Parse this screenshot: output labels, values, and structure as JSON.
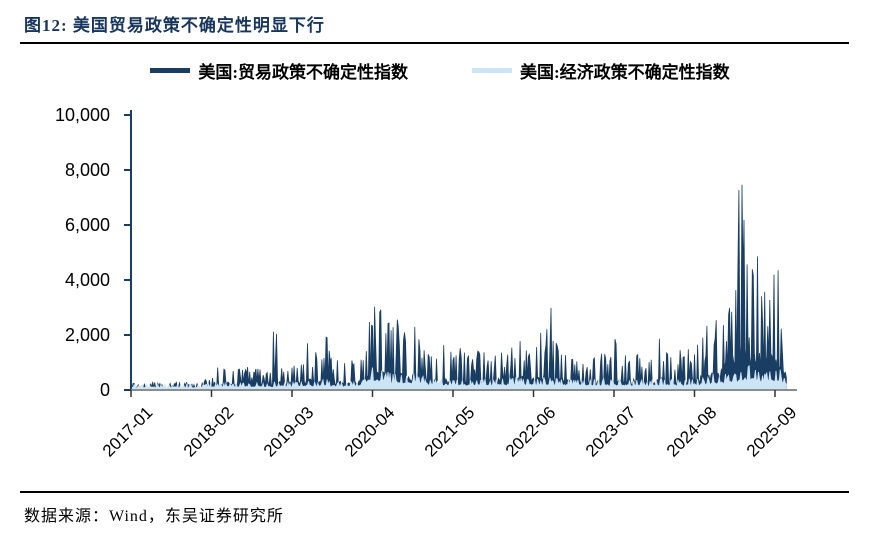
{
  "header": {
    "title": "图12:  美国贸易政策不确定性明显下行"
  },
  "footer": {
    "source": "数据来源：Wind，东吴证券研究所"
  },
  "colors": {
    "title_navy": "#17365D",
    "tpu_navy": "#1A3E63",
    "epu_light_blue": "#CDE4F6",
    "x_axis_grey": "#8C8C8C",
    "tick_dark": "#333333"
  },
  "chart_data": {
    "type": "area",
    "title": "图12:  美国贸易政策不确定性明显下行",
    "xlabel": "",
    "ylabel": "",
    "ylim": [
      0,
      10000
    ],
    "grid": false,
    "legend_position": "top",
    "x_start": "2017-01",
    "x_end": "2025-10",
    "freq": "monthly_envelope (daily index summarized as [typical, monthly-max])",
    "y_ticks": [
      0,
      2000,
      4000,
      6000,
      8000,
      10000
    ],
    "y_tick_labels": [
      "0",
      "2,000",
      "4,000",
      "6,000",
      "8,000",
      "10,000"
    ],
    "x_tick_labels": [
      "2017-01",
      "2018-02",
      "2019-03",
      "2020-04",
      "2021-05",
      "2022-06",
      "2023-07",
      "2024-08",
      "2025-09"
    ],
    "series": [
      {
        "name": "美国:贸易政策不确定性指数",
        "color": "#1A3E63",
        "monthly_base_peak": [
          [
            80,
            250
          ],
          [
            80,
            200
          ],
          [
            90,
            250
          ],
          [
            100,
            300
          ],
          [
            90,
            250
          ],
          [
            80,
            200
          ],
          [
            90,
            250
          ],
          [
            100,
            300
          ],
          [
            90,
            250
          ],
          [
            90,
            300
          ],
          [
            90,
            250
          ],
          [
            100,
            300
          ],
          [
            120,
            400
          ],
          [
            150,
            450
          ],
          [
            200,
            900
          ],
          [
            250,
            800
          ],
          [
            200,
            700
          ],
          [
            250,
            800
          ],
          [
            300,
            900
          ],
          [
            250,
            700
          ],
          [
            300,
            800
          ],
          [
            250,
            600
          ],
          [
            250,
            700
          ],
          [
            300,
            2300
          ],
          [
            300,
            800
          ],
          [
            280,
            700
          ],
          [
            300,
            900
          ],
          [
            300,
            1000
          ],
          [
            350,
            1700
          ],
          [
            350,
            1400
          ],
          [
            300,
            1200
          ],
          [
            400,
            2100
          ],
          [
            350,
            1500
          ],
          [
            300,
            1200
          ],
          [
            280,
            1000
          ],
          [
            300,
            1100
          ],
          [
            300,
            1000
          ],
          [
            350,
            1200
          ],
          [
            500,
            2500
          ],
          [
            800,
            3300
          ],
          [
            700,
            3000
          ],
          [
            600,
            2600
          ],
          [
            500,
            2400
          ],
          [
            600,
            2600
          ],
          [
            500,
            2200
          ],
          [
            500,
            2400
          ],
          [
            450,
            2000
          ],
          [
            400,
            1600
          ],
          [
            400,
            1400
          ],
          [
            350,
            1200
          ],
          [
            400,
            1800
          ],
          [
            350,
            1400
          ],
          [
            350,
            1300
          ],
          [
            400,
            1600
          ],
          [
            350,
            1300
          ],
          [
            350,
            1200
          ],
          [
            400,
            1500
          ],
          [
            400,
            1400
          ],
          [
            350,
            1300
          ],
          [
            400,
            1500
          ],
          [
            400,
            1300
          ],
          [
            450,
            1600
          ],
          [
            500,
            1800
          ],
          [
            450,
            1500
          ],
          [
            400,
            1400
          ],
          [
            450,
            1700
          ],
          [
            500,
            2200
          ],
          [
            500,
            3000
          ],
          [
            450,
            1800
          ],
          [
            400,
            1500
          ],
          [
            400,
            1400
          ],
          [
            350,
            1200
          ],
          [
            350,
            1100
          ],
          [
            300,
            1000
          ],
          [
            350,
            1300
          ],
          [
            300,
            1100
          ],
          [
            350,
            1400
          ],
          [
            300,
            1200
          ],
          [
            400,
            1900
          ],
          [
            350,
            1300
          ],
          [
            300,
            1100
          ],
          [
            350,
            1300
          ],
          [
            300,
            1200
          ],
          [
            300,
            1100
          ],
          [
            300,
            1200
          ],
          [
            400,
            2000
          ],
          [
            350,
            1400
          ],
          [
            300,
            1300
          ],
          [
            350,
            1500
          ],
          [
            300,
            1300
          ],
          [
            400,
            1600
          ],
          [
            450,
            1800
          ],
          [
            500,
            2000
          ],
          [
            600,
            2400
          ],
          [
            700,
            2800
          ],
          [
            700,
            2600
          ],
          [
            1000,
            3200
          ],
          [
            1300,
            3800
          ],
          [
            1800,
            8000
          ],
          [
            1800,
            6800
          ],
          [
            1400,
            4600
          ],
          [
            1300,
            5100
          ],
          [
            1200,
            3600
          ],
          [
            1200,
            4400
          ],
          [
            1000,
            4500
          ],
          [
            800,
            2300
          ]
        ]
      },
      {
        "name": "美国:经济政策不确定性指数",
        "color": "#CDE4F6",
        "monthly_base_peak": [
          [
            100,
            200
          ],
          [
            100,
            190
          ],
          [
            110,
            210
          ],
          [
            110,
            220
          ],
          [
            100,
            200
          ],
          [
            100,
            190
          ],
          [
            100,
            200
          ],
          [
            110,
            220
          ],
          [
            100,
            200
          ],
          [
            110,
            210
          ],
          [
            100,
            200
          ],
          [
            110,
            220
          ],
          [
            120,
            240
          ],
          [
            120,
            230
          ],
          [
            130,
            260
          ],
          [
            120,
            250
          ],
          [
            120,
            240
          ],
          [
            130,
            260
          ],
          [
            130,
            270
          ],
          [
            120,
            250
          ],
          [
            130,
            260
          ],
          [
            130,
            280
          ],
          [
            120,
            250
          ],
          [
            140,
            300
          ],
          [
            150,
            300
          ],
          [
            140,
            280
          ],
          [
            150,
            300
          ],
          [
            150,
            310
          ],
          [
            160,
            340
          ],
          [
            150,
            320
          ],
          [
            150,
            300
          ],
          [
            180,
            420
          ],
          [
            160,
            340
          ],
          [
            150,
            310
          ],
          [
            140,
            290
          ],
          [
            150,
            320
          ],
          [
            150,
            300
          ],
          [
            200,
            420
          ],
          [
            350,
            700
          ],
          [
            420,
            850
          ],
          [
            380,
            750
          ],
          [
            350,
            700
          ],
          [
            300,
            620
          ],
          [
            280,
            560
          ],
          [
            280,
            550
          ],
          [
            300,
            620
          ],
          [
            310,
            660
          ],
          [
            260,
            520
          ],
          [
            220,
            440
          ],
          [
            210,
            420
          ],
          [
            220,
            430
          ],
          [
            200,
            400
          ],
          [
            200,
            390
          ],
          [
            200,
            400
          ],
          [
            190,
            380
          ],
          [
            190,
            370
          ],
          [
            200,
            400
          ],
          [
            200,
            410
          ],
          [
            190,
            380
          ],
          [
            200,
            420
          ],
          [
            210,
            440
          ],
          [
            220,
            460
          ],
          [
            230,
            480
          ],
          [
            210,
            440
          ],
          [
            200,
            420
          ],
          [
            210,
            450
          ],
          [
            220,
            470
          ],
          [
            220,
            480
          ],
          [
            210,
            440
          ],
          [
            200,
            420
          ],
          [
            200,
            410
          ],
          [
            190,
            390
          ],
          [
            200,
            400
          ],
          [
            190,
            380
          ],
          [
            210,
            430
          ],
          [
            190,
            390
          ],
          [
            200,
            410
          ],
          [
            190,
            380
          ],
          [
            200,
            420
          ],
          [
            190,
            390
          ],
          [
            180,
            370
          ],
          [
            190,
            400
          ],
          [
            180,
            370
          ],
          [
            180,
            360
          ],
          [
            190,
            380
          ],
          [
            200,
            420
          ],
          [
            190,
            390
          ],
          [
            180,
            380
          ],
          [
            190,
            400
          ],
          [
            180,
            370
          ],
          [
            200,
            430
          ],
          [
            210,
            450
          ],
          [
            220,
            470
          ],
          [
            250,
            520
          ],
          [
            300,
            650
          ],
          [
            280,
            560
          ],
          [
            300,
            600
          ],
          [
            350,
            660
          ],
          [
            400,
            760
          ],
          [
            500,
            900
          ],
          [
            450,
            820
          ],
          [
            400,
            760
          ],
          [
            350,
            660
          ],
          [
            350,
            700
          ],
          [
            350,
            800
          ],
          [
            300,
            500
          ]
        ]
      }
    ]
  }
}
